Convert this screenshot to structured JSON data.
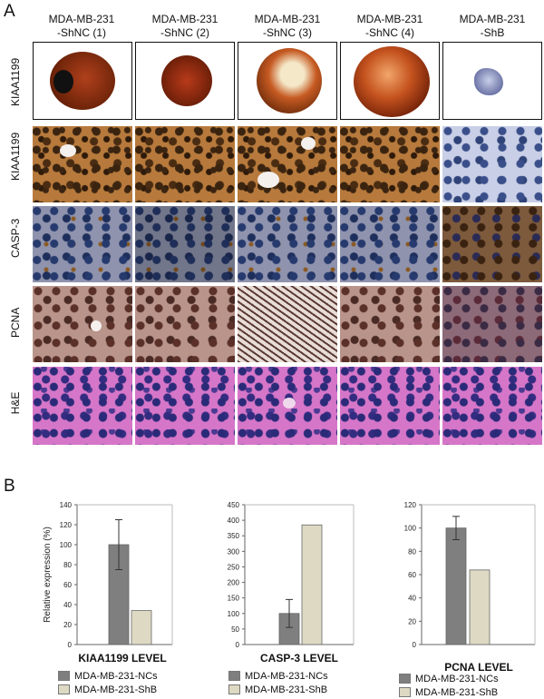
{
  "panel_labels": {
    "a": "A",
    "b": "B"
  },
  "columns": [
    {
      "line1": "MDA-MB-231",
      "line2": "-ShNC (1)"
    },
    {
      "line1": "MDA-MB-231",
      "line2": "-ShNC (2)"
    },
    {
      "line1": "MDA-MB-231",
      "line2": "-ShNC (3)"
    },
    {
      "line1": "MDA-MB-231",
      "line2": "-ShNC (4)"
    },
    {
      "line1": "MDA-MB-231",
      "line2": "-ShB"
    }
  ],
  "rows": [
    "KIAA1199",
    "KIAA1199",
    "CASP-3",
    "PCNA",
    "H&E"
  ],
  "legend": {
    "nc": "MDA-MB-231-NCs",
    "shb": "MDA-MB-231-ShB"
  },
  "colors": {
    "nc": "#7f7f7f",
    "shb": "#ddd9c3"
  },
  "chart_data": [
    {
      "type": "bar",
      "title": "KIAA1199 LEVEL",
      "ylabel": "Relative expression (%)",
      "ylim": [
        0,
        140
      ],
      "ticks": [
        0,
        20,
        40,
        60,
        80,
        100,
        120,
        140
      ],
      "series": [
        {
          "name": "MDA-MB-231-NCs",
          "values": [
            100
          ],
          "error": [
            25
          ]
        },
        {
          "name": "MDA-MB-231-ShB",
          "values": [
            34
          ]
        }
      ]
    },
    {
      "type": "bar",
      "title": "CASP-3 LEVEL",
      "ylabel": "",
      "ylim": [
        0,
        450
      ],
      "ticks": [
        0,
        50,
        100,
        150,
        200,
        250,
        300,
        350,
        400,
        450
      ],
      "series": [
        {
          "name": "MDA-MB-231-NCs",
          "values": [
            100
          ],
          "error": [
            45
          ]
        },
        {
          "name": "MDA-MB-231-ShB",
          "values": [
            385
          ]
        }
      ]
    },
    {
      "type": "bar",
      "title": "PCNA LEVEL",
      "ylabel": "",
      "ylim": [
        0,
        120
      ],
      "ticks": [
        0,
        20,
        40,
        60,
        80,
        100,
        120
      ],
      "series": [
        {
          "name": "MDA-MB-231-NCs",
          "values": [
            100
          ],
          "error": [
            10
          ]
        },
        {
          "name": "MDA-MB-231-ShB",
          "values": [
            64
          ]
        }
      ]
    }
  ]
}
